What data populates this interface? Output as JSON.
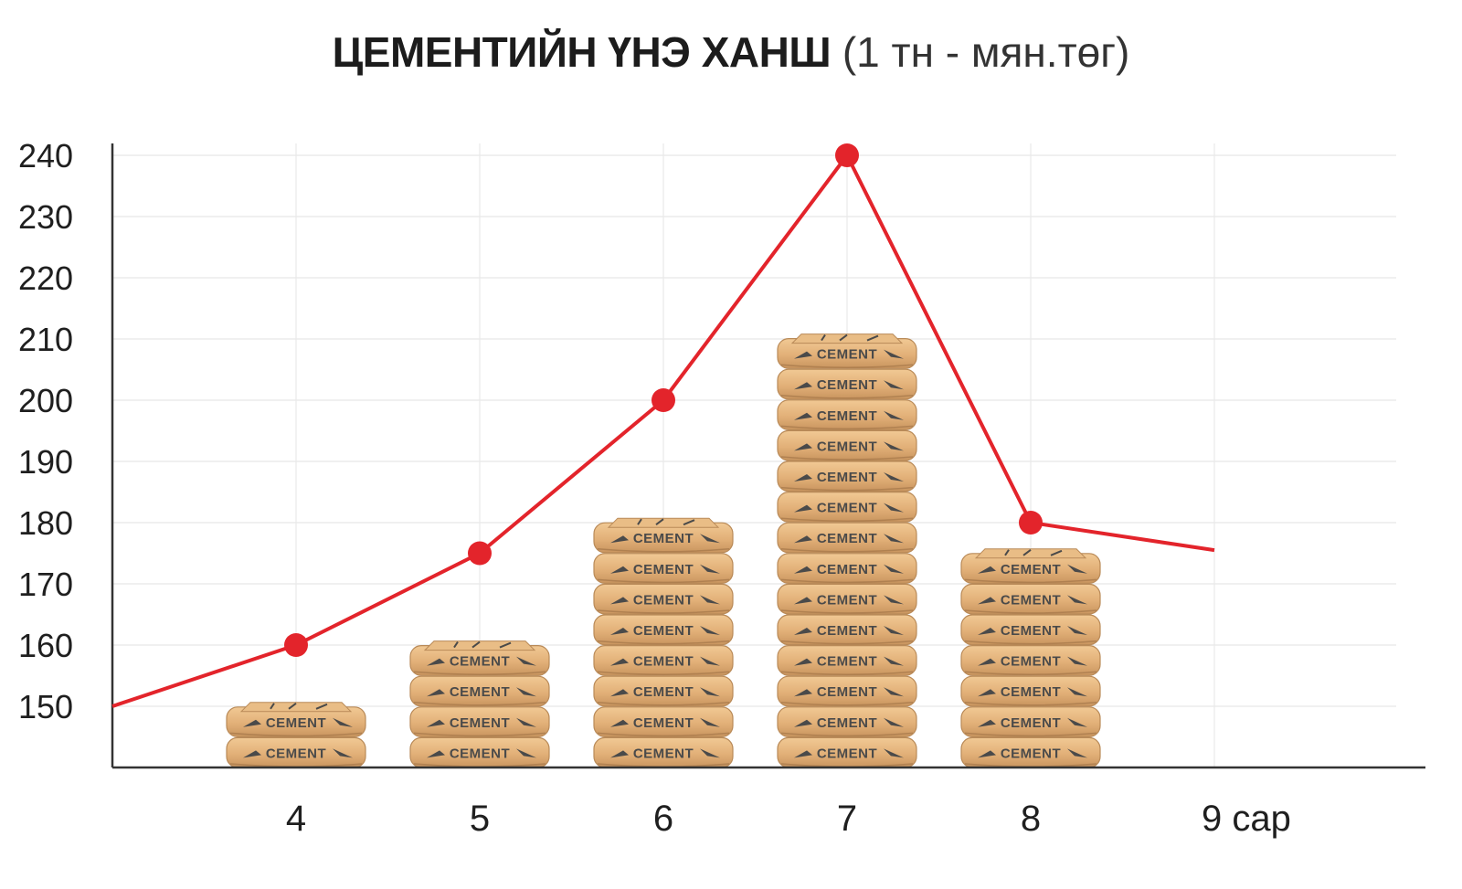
{
  "title": {
    "main": "ЦЕМЕНТИЙН ҮНЭ ХАНШ",
    "unit": "(1 тн - мян.төг)"
  },
  "chart_data": {
    "type": "line",
    "title": "ЦЕМЕНТИЙН ҮНЭ ХАНШ (1 тн - мян.төг)",
    "xlabel": "сар",
    "ylabel": "",
    "x_ticks": [
      "4",
      "5",
      "6",
      "7",
      "8",
      "9 сар"
    ],
    "y_ticks": [
      150,
      160,
      170,
      180,
      190,
      200,
      210,
      220,
      230,
      240
    ],
    "ylim": [
      140,
      241
    ],
    "grid": true,
    "series": [
      {
        "points": [
          {
            "x": 3,
            "y": 150
          },
          {
            "x": 4,
            "y": 160
          },
          {
            "x": 5,
            "y": 175
          },
          {
            "x": 6,
            "y": 200
          },
          {
            "x": 7,
            "y": 240
          },
          {
            "x": 8,
            "y": 180
          },
          {
            "x": 9,
            "y": 175.5
          }
        ],
        "markers": [
          4,
          5,
          6,
          7,
          8
        ],
        "color": "#e3242b"
      }
    ],
    "bag_stacks": [
      {
        "x": 4,
        "count": 2
      },
      {
        "x": 5,
        "count": 4
      },
      {
        "x": 6,
        "count": 8
      },
      {
        "x": 7,
        "count": 14
      },
      {
        "x": 8,
        "count": 7
      }
    ],
    "bag_label": "CEMENT"
  },
  "colors": {
    "line": "#e3242b",
    "bag": "#e3b47c",
    "bag_dark": "#b98a58",
    "axis": "#333333",
    "grid": "#e8e8e8"
  }
}
